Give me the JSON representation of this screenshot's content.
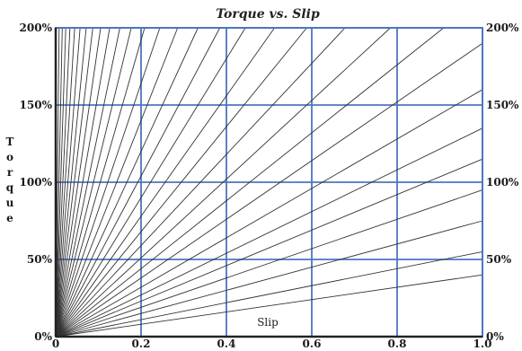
{
  "chart_data": {
    "type": "line",
    "title": "Torque vs. Slip",
    "xlabel": "Slip",
    "ylabel": "Torque",
    "xlim": [
      0,
      1.0
    ],
    "ylim": [
      0,
      200
    ],
    "x_ticks": [
      "0",
      "0.2",
      "0.4",
      "0.6",
      "0.8",
      "1.0"
    ],
    "y_ticks": [
      "0%",
      "50%",
      "100%",
      "150%",
      "200%"
    ],
    "right_y_ticks": [
      "0%",
      "50%",
      "100%",
      "150%",
      "200%"
    ],
    "grid": true,
    "line_slopes_percent_per_unit_slip": [
      40,
      55,
      75,
      95,
      115,
      135,
      160,
      190,
      220,
      255,
      295,
      340,
      390,
      450,
      520,
      600,
      700,
      820,
      960,
      1130,
      1330,
      1580,
      1900,
      2300,
      2800,
      3500,
      4500,
      6000,
      8500,
      13000,
      25000
    ],
    "colors": {
      "grid": "#4d74c0",
      "line": "#333333",
      "tick_text": "#1a1a1a"
    }
  }
}
